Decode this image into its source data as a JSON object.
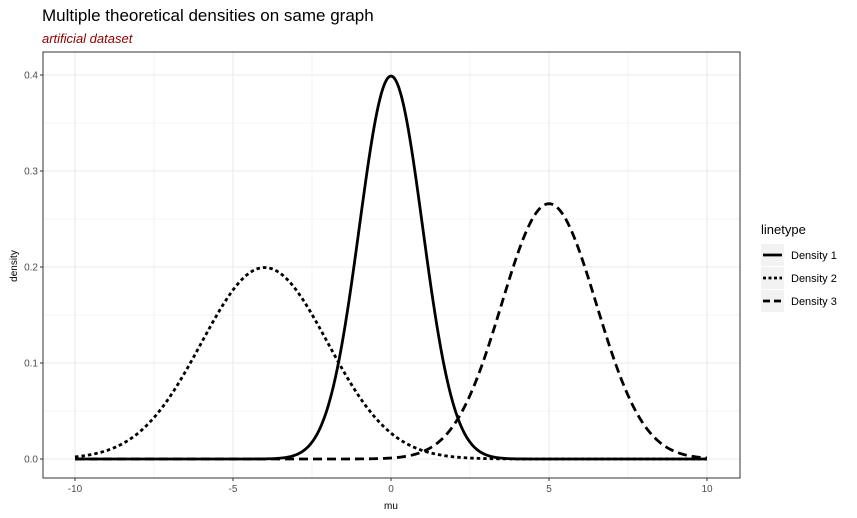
{
  "chart_data": {
    "type": "line",
    "title": "Multiple theoretical densities on same graph",
    "subtitle": "artificial dataset",
    "xlabel": "mu",
    "ylabel": "density",
    "xlim": [
      -10,
      10
    ],
    "ylim": [
      0,
      0.4
    ],
    "x_ticks": [
      "-10",
      "-5",
      "0",
      "5",
      "10"
    ],
    "y_ticks": [
      "0.0",
      "0.1",
      "0.2",
      "0.3",
      "0.4"
    ],
    "grid": true,
    "legend": {
      "title": "linetype",
      "position": "right",
      "entries": [
        "Density 1",
        "Density 2",
        "Density 3"
      ]
    },
    "series": [
      {
        "name": "Density 1",
        "linetype": "solid",
        "distribution": "normal",
        "mean": 0,
        "sd": 1
      },
      {
        "name": "Density 2",
        "linetype": "dotted",
        "distribution": "normal",
        "mean": -4,
        "sd": 2
      },
      {
        "name": "Density 3",
        "linetype": "dashed",
        "distribution": "normal",
        "mean": 5,
        "sd": 1.5
      }
    ],
    "colors": {
      "line": "#000000",
      "grid": "#ebebeb",
      "panel_border": "#333333",
      "subtitle": "#8b0000"
    }
  }
}
